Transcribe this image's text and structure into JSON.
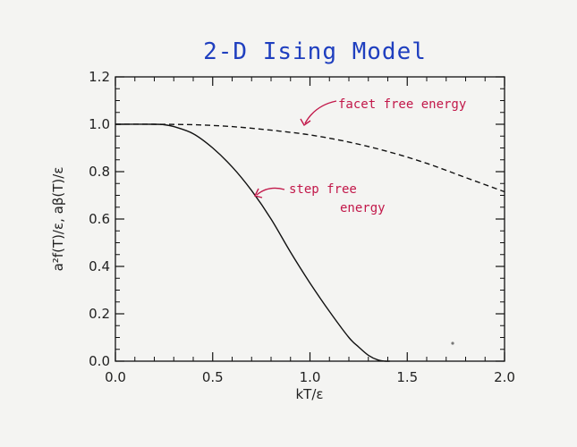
{
  "chart_data": {
    "type": "line",
    "title": "2-D Ising Model",
    "xlabel": "kT/ε",
    "ylabel": "a²f(T)/ε, aβ(T)/ε",
    "xlim": [
      0.0,
      2.0
    ],
    "ylim": [
      0.0,
      1.2
    ],
    "x_ticks": [
      "0.0",
      "0.5",
      "1.0",
      "1.5",
      "2.0"
    ],
    "y_ticks": [
      "0.0",
      "0.2",
      "0.4",
      "0.6",
      "0.8",
      "1.0",
      "1.2"
    ],
    "grid": false,
    "series": [
      {
        "name": "facet free energy",
        "style": "dashed",
        "x": [
          0.0,
          0.2,
          0.4,
          0.6,
          0.8,
          1.0,
          1.2,
          1.4,
          1.6,
          1.8,
          2.0
        ],
        "y": [
          1.0,
          1.0,
          0.998,
          0.99,
          0.975,
          0.955,
          0.925,
          0.885,
          0.835,
          0.775,
          0.715
        ]
      },
      {
        "name": "step free energy",
        "style": "solid",
        "x": [
          0.0,
          0.2,
          0.25,
          0.3,
          0.4,
          0.5,
          0.6,
          0.7,
          0.8,
          0.9,
          1.0,
          1.1,
          1.2,
          1.25,
          1.3,
          1.35,
          1.39,
          1.41
        ],
        "y": [
          1.0,
          1.0,
          0.998,
          0.99,
          0.96,
          0.9,
          0.82,
          0.72,
          0.6,
          0.46,
          0.33,
          0.21,
          0.1,
          0.06,
          0.025,
          0.005,
          0.0,
          0.0
        ]
      }
    ],
    "annotations": {
      "facet": [
        "facet free energy"
      ],
      "step": [
        "step free",
        "energy"
      ]
    },
    "colors": {
      "title": "#1f3fbf",
      "annotation": "#c2184a",
      "lines": "#111111"
    }
  }
}
